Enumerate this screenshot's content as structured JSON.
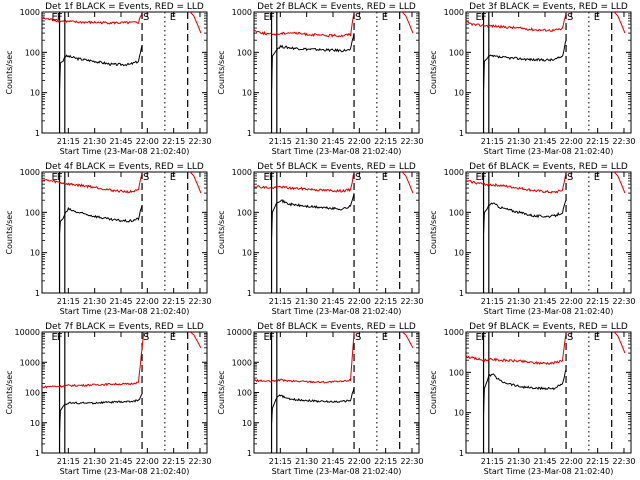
{
  "figure": {
    "ylabel": "Counts/sec",
    "xlabel": "Start Time (23-Mar-08 21:02:40)",
    "x_ticks": [
      "21:15",
      "21:30",
      "21:45",
      "22:00",
      "22:15",
      "22:30"
    ],
    "event_markers": [
      "E",
      "F",
      "S",
      "E"
    ],
    "colors": {
      "events": "#000000",
      "lld": "#dd0000",
      "background": "#ffffff"
    }
  },
  "chart_data": [
    {
      "type": "line",
      "title": "Det 1f BLACK = Events, RED = LLD",
      "xlabel": "Start Time (23-Mar-08 21:02:40)",
      "ylabel": "Counts/sec",
      "xlim_minutes": [
        0,
        94
      ],
      "ylim": [
        1,
        1000
      ],
      "yscale": "log",
      "y_ticks": [
        1,
        10,
        100,
        1000
      ],
      "markers_minutes": {
        "E": [
          10,
          83
        ],
        "F": [
          13
        ],
        "S": [
          57
        ]
      },
      "series": [
        {
          "name": "BLACK = Events",
          "color": "#000000",
          "points": [
            [
              10,
              12
            ],
            [
              10.5,
              55
            ],
            [
              12,
              60
            ],
            [
              13,
              80
            ],
            [
              15,
              80
            ],
            [
              20,
              70
            ],
            [
              30,
              60
            ],
            [
              40,
              50
            ],
            [
              50,
              50
            ],
            [
              55,
              60
            ],
            [
              57,
              150
            ]
          ]
        },
        {
          "name": "RED = LLD",
          "color": "#dd0000",
          "points": [
            [
              0,
              700
            ],
            [
              5,
              650
            ],
            [
              10,
              600
            ],
            [
              15,
              580
            ],
            [
              20,
              560
            ],
            [
              30,
              550
            ],
            [
              40,
              540
            ],
            [
              50,
              540
            ],
            [
              55,
              550
            ],
            [
              57,
              1000
            ]
          ]
        }
      ]
    },
    {
      "type": "line",
      "title": "Det 2f BLACK = Events, RED = LLD",
      "xlabel": "Start Time (23-Mar-08 21:02:40)",
      "ylabel": "Counts/sec",
      "xlim_minutes": [
        0,
        94
      ],
      "ylim": [
        1,
        1000
      ],
      "yscale": "log",
      "y_ticks": [
        1,
        10,
        100,
        1000
      ],
      "markers_minutes": {
        "E": [
          10,
          83
        ],
        "F": [
          13
        ],
        "S": [
          57
        ]
      },
      "series": [
        {
          "name": "BLACK = Events",
          "color": "#000000",
          "points": [
            [
              10,
              12
            ],
            [
              10.5,
              80
            ],
            [
              12,
              100
            ],
            [
              13,
              120
            ],
            [
              15,
              140
            ],
            [
              20,
              130
            ],
            [
              30,
              120
            ],
            [
              40,
              115
            ],
            [
              50,
              110
            ],
            [
              55,
              115
            ],
            [
              57,
              300
            ]
          ]
        },
        {
          "name": "RED = LLD",
          "color": "#dd0000",
          "points": [
            [
              0,
              350
            ],
            [
              5,
              300
            ],
            [
              10,
              280
            ],
            [
              15,
              290
            ],
            [
              20,
              310
            ],
            [
              30,
              280
            ],
            [
              40,
              260
            ],
            [
              50,
              260
            ],
            [
              55,
              280
            ],
            [
              57,
              1000
            ]
          ]
        }
      ]
    },
    {
      "type": "line",
      "title": "Det 3f BLACK = Events, RED = LLD",
      "xlabel": "Start Time (23-Mar-08 21:02:40)",
      "ylabel": "Counts/sec",
      "xlim_minutes": [
        0,
        94
      ],
      "ylim": [
        1,
        1000
      ],
      "yscale": "log",
      "y_ticks": [
        1,
        10,
        100,
        1000
      ],
      "markers_minutes": {
        "E": [
          10,
          83
        ],
        "F": [
          13
        ],
        "S": [
          57
        ]
      },
      "series": [
        {
          "name": "BLACK = Events",
          "color": "#000000",
          "points": [
            [
              10,
              12
            ],
            [
              10.5,
              60
            ],
            [
              12,
              70
            ],
            [
              13,
              80
            ],
            [
              15,
              80
            ],
            [
              20,
              75
            ],
            [
              30,
              70
            ],
            [
              40,
              65
            ],
            [
              50,
              65
            ],
            [
              55,
              80
            ],
            [
              57,
              200
            ]
          ]
        },
        {
          "name": "RED = LLD",
          "color": "#dd0000",
          "points": [
            [
              0,
              550
            ],
            [
              5,
              480
            ],
            [
              10,
              460
            ],
            [
              15,
              450
            ],
            [
              20,
              430
            ],
            [
              30,
              400
            ],
            [
              40,
              360
            ],
            [
              50,
              350
            ],
            [
              55,
              380
            ],
            [
              57,
              1000
            ]
          ]
        }
      ]
    },
    {
      "type": "line",
      "title": "Det 4f BLACK = Events, RED = LLD",
      "xlabel": "Start Time (23-Mar-08 21:02:40)",
      "ylabel": "Counts/sec",
      "xlim_minutes": [
        0,
        94
      ],
      "ylim": [
        1,
        1000
      ],
      "yscale": "log",
      "y_ticks": [
        1,
        10,
        100,
        1000
      ],
      "markers_minutes": {
        "E": [
          10,
          83
        ],
        "F": [
          13
        ],
        "S": [
          57
        ]
      },
      "series": [
        {
          "name": "BLACK = Events",
          "color": "#000000",
          "points": [
            [
              10,
              30
            ],
            [
              10.5,
              60
            ],
            [
              12,
              70
            ],
            [
              13,
              90
            ],
            [
              15,
              120
            ],
            [
              20,
              100
            ],
            [
              30,
              80
            ],
            [
              40,
              65
            ],
            [
              50,
              60
            ],
            [
              55,
              70
            ],
            [
              57,
              150
            ]
          ]
        },
        {
          "name": "RED = LLD",
          "color": "#dd0000",
          "points": [
            [
              0,
              650
            ],
            [
              5,
              600
            ],
            [
              10,
              550
            ],
            [
              15,
              500
            ],
            [
              20,
              480
            ],
            [
              30,
              420
            ],
            [
              40,
              350
            ],
            [
              50,
              320
            ],
            [
              55,
              350
            ],
            [
              57,
              1000
            ]
          ]
        }
      ]
    },
    {
      "type": "line",
      "title": "Det 5f BLACK = Events, RED = LLD",
      "xlabel": "Start Time (23-Mar-08 21:02:40)",
      "ylabel": "Counts/sec",
      "xlim_minutes": [
        0,
        94
      ],
      "ylim": [
        1,
        1000
      ],
      "yscale": "log",
      "y_ticks": [
        1,
        10,
        100,
        1000
      ],
      "markers_minutes": {
        "E": [
          10,
          83
        ],
        "F": [
          13
        ],
        "S": [
          57
        ]
      },
      "series": [
        {
          "name": "BLACK = Events",
          "color": "#000000",
          "points": [
            [
              10,
              25
            ],
            [
              10.5,
              100
            ],
            [
              12,
              140
            ],
            [
              13,
              180
            ],
            [
              15,
              200
            ],
            [
              20,
              160
            ],
            [
              30,
              140
            ],
            [
              40,
              130
            ],
            [
              50,
              120
            ],
            [
              55,
              140
            ],
            [
              57,
              300
            ]
          ]
        },
        {
          "name": "RED = LLD",
          "color": "#dd0000",
          "points": [
            [
              0,
              450
            ],
            [
              5,
              420
            ],
            [
              10,
              400
            ],
            [
              15,
              430
            ],
            [
              20,
              400
            ],
            [
              30,
              380
            ],
            [
              40,
              350
            ],
            [
              50,
              340
            ],
            [
              55,
              360
            ],
            [
              57,
              1000
            ]
          ]
        }
      ]
    },
    {
      "type": "line",
      "title": "Det 6f BLACK = Events, RED = LLD",
      "xlabel": "Start Time (23-Mar-08 21:02:40)",
      "ylabel": "Counts/sec",
      "xlim_minutes": [
        0,
        94
      ],
      "ylim": [
        1,
        1000
      ],
      "yscale": "log",
      "y_ticks": [
        1,
        10,
        100,
        1000
      ],
      "markers_minutes": {
        "E": [
          10,
          83
        ],
        "F": [
          13
        ],
        "S": [
          57
        ]
      },
      "series": [
        {
          "name": "BLACK = Events",
          "color": "#000000",
          "points": [
            [
              10,
              30
            ],
            [
              10.5,
              100
            ],
            [
              12,
              120
            ],
            [
              13,
              150
            ],
            [
              15,
              170
            ],
            [
              20,
              130
            ],
            [
              30,
              100
            ],
            [
              40,
              80
            ],
            [
              50,
              80
            ],
            [
              55,
              100
            ],
            [
              57,
              200
            ]
          ]
        },
        {
          "name": "RED = LLD",
          "color": "#dd0000",
          "points": [
            [
              0,
              600
            ],
            [
              5,
              550
            ],
            [
              10,
              500
            ],
            [
              15,
              480
            ],
            [
              20,
              460
            ],
            [
              30,
              400
            ],
            [
              40,
              340
            ],
            [
              50,
              310
            ],
            [
              55,
              350
            ],
            [
              57,
              1000
            ]
          ]
        }
      ]
    },
    {
      "type": "line",
      "title": "Det 7f BLACK = Events, RED = LLD",
      "xlabel": "Start Time (23-Mar-08 21:02:40)",
      "ylabel": "Counts/sec",
      "xlim_minutes": [
        0,
        94
      ],
      "ylim": [
        1,
        10000
      ],
      "yscale": "log",
      "y_ticks": [
        1,
        10,
        100,
        1000,
        10000
      ],
      "markers_minutes": {
        "E": [
          10,
          83
        ],
        "F": [
          13
        ],
        "S": [
          57
        ]
      },
      "series": [
        {
          "name": "BLACK = Events",
          "color": "#000000",
          "points": [
            [
              10,
              5
            ],
            [
              10.5,
              25
            ],
            [
              12,
              35
            ],
            [
              13,
              40
            ],
            [
              15,
              45
            ],
            [
              20,
              45
            ],
            [
              30,
              45
            ],
            [
              40,
              48
            ],
            [
              50,
              50
            ],
            [
              55,
              55
            ],
            [
              57,
              90
            ]
          ]
        },
        {
          "name": "RED = LLD",
          "color": "#dd0000",
          "points": [
            [
              0,
              150
            ],
            [
              5,
              160
            ],
            [
              10,
              160
            ],
            [
              15,
              170
            ],
            [
              20,
              170
            ],
            [
              30,
              180
            ],
            [
              40,
              190
            ],
            [
              50,
              190
            ],
            [
              55,
              220
            ],
            [
              57,
              3000
            ],
            [
              58,
              10000
            ]
          ]
        }
      ]
    },
    {
      "type": "line",
      "title": "Det 8f BLACK = Events, RED = LLD",
      "xlabel": "Start Time (23-Mar-08 21:02:40)",
      "ylabel": "Counts/sec",
      "xlim_minutes": [
        0,
        94
      ],
      "ylim": [
        1,
        10000
      ],
      "yscale": "log",
      "y_ticks": [
        1,
        10,
        100,
        1000,
        10000
      ],
      "markers_minutes": {
        "E": [
          10,
          83
        ],
        "F": [
          13
        ],
        "S": [
          57
        ]
      },
      "series": [
        {
          "name": "BLACK = Events",
          "color": "#000000",
          "points": [
            [
              10,
              10
            ],
            [
              10.5,
              30
            ],
            [
              12,
              50
            ],
            [
              13,
              70
            ],
            [
              15,
              80
            ],
            [
              20,
              60
            ],
            [
              30,
              55
            ],
            [
              40,
              50
            ],
            [
              50,
              50
            ],
            [
              55,
              55
            ],
            [
              57,
              150
            ]
          ]
        },
        {
          "name": "RED = LLD",
          "color": "#dd0000",
          "points": [
            [
              0,
              250
            ],
            [
              5,
              240
            ],
            [
              10,
              230
            ],
            [
              15,
              260
            ],
            [
              20,
              240
            ],
            [
              30,
              230
            ],
            [
              40,
              220
            ],
            [
              50,
              230
            ],
            [
              55,
              260
            ],
            [
              57,
              10000
            ]
          ]
        }
      ]
    },
    {
      "type": "line",
      "title": "Det 9f BLACK = Events, RED = LLD",
      "xlabel": "Start Time (23-Mar-08 21:02:40)",
      "ylabel": "Counts/sec",
      "xlim_minutes": [
        0,
        94
      ],
      "ylim": [
        1,
        1000
      ],
      "yscale": "log",
      "y_ticks": [
        1,
        10,
        100,
        1000
      ],
      "markers_minutes": {
        "E": [
          10,
          83
        ],
        "F": [
          13
        ],
        "S": [
          57
        ]
      },
      "series": [
        {
          "name": "BLACK = Events",
          "color": "#000000",
          "points": [
            [
              10,
              10
            ],
            [
              10.5,
              40
            ],
            [
              12,
              60
            ],
            [
              13,
              80
            ],
            [
              15,
              90
            ],
            [
              20,
              60
            ],
            [
              30,
              45
            ],
            [
              40,
              40
            ],
            [
              50,
              40
            ],
            [
              55,
              50
            ],
            [
              57,
              120
            ]
          ]
        },
        {
          "name": "RED = LLD",
          "color": "#dd0000",
          "points": [
            [
              0,
              250
            ],
            [
              5,
              220
            ],
            [
              10,
              200
            ],
            [
              15,
              210
            ],
            [
              20,
              200
            ],
            [
              30,
              190
            ],
            [
              40,
              170
            ],
            [
              50,
              170
            ],
            [
              55,
              200
            ],
            [
              57,
              1000
            ]
          ]
        }
      ]
    }
  ]
}
